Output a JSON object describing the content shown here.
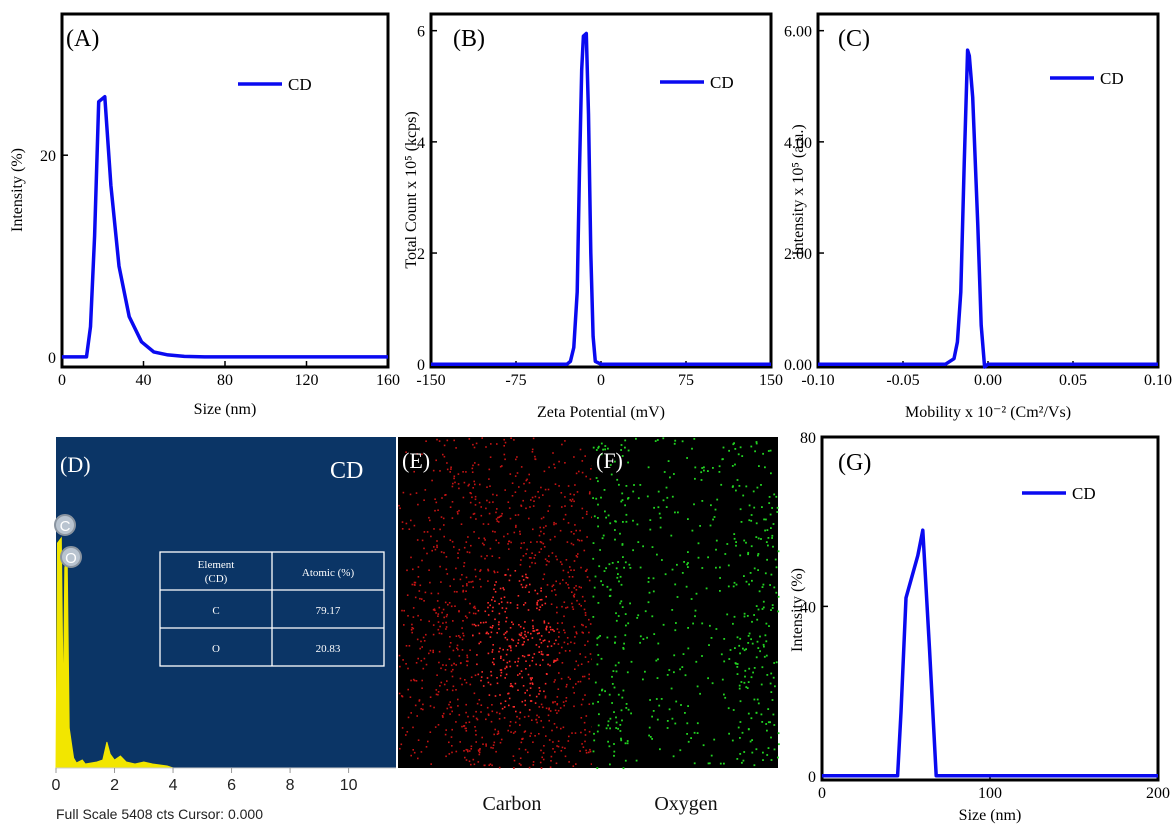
{
  "chart_data": [
    {
      "panel": "(A)",
      "type": "line",
      "xlabel": "Size (nm)",
      "ylabel": "Intensity (%)",
      "xlim": [
        0,
        160
      ],
      "ylim": [
        -1,
        34
      ],
      "xticks": [
        0,
        40,
        80,
        120,
        160
      ],
      "yticks": [
        0,
        20
      ],
      "legend": "top-right",
      "series": [
        {
          "name": "CD",
          "color": "#0a0af0",
          "x": [
            0,
            12,
            14,
            16,
            18,
            21,
            24,
            28,
            33,
            39,
            45,
            52,
            60,
            70,
            90,
            120,
            160
          ],
          "y": [
            0,
            0,
            3,
            12,
            25.3,
            25.8,
            17,
            9,
            4,
            1.5,
            0.5,
            0.2,
            0.05,
            0,
            0,
            0,
            0
          ]
        }
      ]
    },
    {
      "panel": "(B)",
      "type": "line",
      "xlabel": "Zeta Potential (mV)",
      "ylabel": "Total Count x 10⁵ (kcps)",
      "xlim": [
        -150,
        150
      ],
      "ylim": [
        -0.05,
        6.3
      ],
      "xticks": [
        -150,
        -75,
        0,
        75,
        150
      ],
      "yticks": [
        0,
        2,
        4,
        6
      ],
      "legend": "top-right",
      "series": [
        {
          "name": "CD",
          "color": "#0a0af0",
          "x": [
            -150,
            -30,
            -27,
            -24,
            -21,
            -19,
            -17,
            -15.5,
            -13,
            -11,
            -9,
            -7,
            -5,
            0,
            150
          ],
          "y": [
            0,
            0,
            0.05,
            0.3,
            1.3,
            3.5,
            5.3,
            5.9,
            5.95,
            4.5,
            2,
            0.5,
            0.05,
            0,
            0
          ]
        }
      ]
    },
    {
      "panel": "(C)",
      "type": "line",
      "xlabel": "Mobility x 10⁻² (Cm²/Vs)",
      "ylabel": "Intensity x 10⁵ (a.u.)",
      "xlim": [
        -0.1,
        0.1
      ],
      "ylim": [
        -0.05,
        6.3
      ],
      "xticks": [
        -0.1,
        -0.05,
        0.0,
        0.05,
        0.1
      ],
      "yticks": [
        0,
        2,
        4,
        6
      ],
      "legend": "top-right",
      "series": [
        {
          "name": "CD",
          "color": "#0a0af0",
          "x": [
            -0.1,
            -0.025,
            -0.02,
            -0.018,
            -0.016,
            -0.014,
            -0.012,
            -0.011,
            -0.009,
            -0.006,
            -0.004,
            -0.002,
            0.0,
            0.1
          ],
          "y": [
            0,
            0,
            0.1,
            0.4,
            1.3,
            3.6,
            5.65,
            5.55,
            4.8,
            2.5,
            0.7,
            -0.05,
            0,
            0
          ]
        }
      ]
    },
    {
      "panel": "(D)",
      "type": "bar",
      "title": "CD",
      "xticks": [
        0,
        2,
        4,
        6,
        8,
        10
      ],
      "peaks": [
        "C",
        "O"
      ],
      "table": {
        "headers": [
          "Element\n(CD)",
          "Atomic (%)"
        ],
        "rows": [
          [
            "C",
            "79.17"
          ],
          [
            "O",
            "20.83"
          ]
        ]
      },
      "footer": "Full Scale 5408 cts Cursor: 0.000"
    },
    {
      "panel": "(E)",
      "type": "heatmap",
      "caption": "Carbon",
      "color": "#ff1a1a"
    },
    {
      "panel": "(F)",
      "type": "heatmap",
      "caption": "Oxygen",
      "color": "#1aff1a"
    },
    {
      "panel": "(G)",
      "type": "line",
      "xlabel": "Size (nm)",
      "ylabel": "Intensity (%)",
      "xlim": [
        0,
        200
      ],
      "ylim": [
        -1,
        80
      ],
      "xticks": [
        0,
        100,
        200
      ],
      "yticks": [
        0,
        40,
        80
      ],
      "legend": "top-right",
      "series": [
        {
          "name": "CD",
          "color": "#0a0af0",
          "x": [
            0,
            45,
            47,
            50,
            57,
            60,
            64,
            68,
            200
          ],
          "y": [
            0,
            0,
            15,
            42,
            52,
            58,
            30,
            0,
            0
          ]
        }
      ]
    }
  ]
}
